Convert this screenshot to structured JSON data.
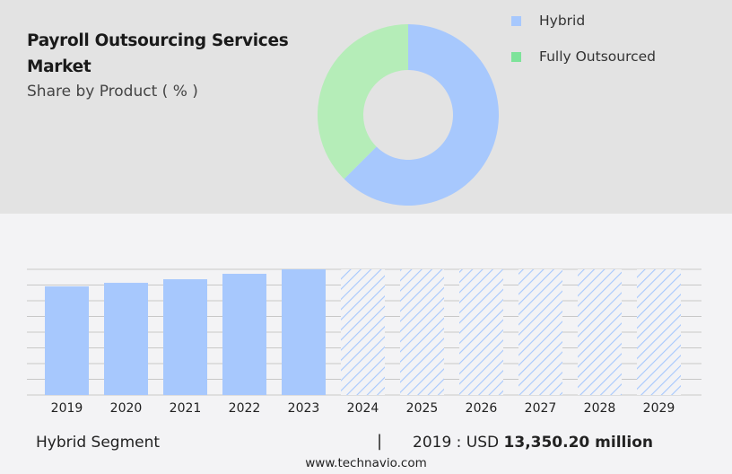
{
  "header": {
    "title": "Payroll Outsourcing Services Market",
    "subtitle": "Share by Product ( % )"
  },
  "chart_data": [
    {
      "type": "pie",
      "variant": "donut",
      "legend_position": "top-right",
      "labels": [
        "Hybrid",
        "Fully Outsourced"
      ],
      "values": [
        62.5,
        37.5
      ],
      "colors": [
        "#a7c8fd",
        "#b5edb8"
      ],
      "legend_colors": [
        "#a7c8fd",
        "#7ee39a"
      ]
    },
    {
      "type": "bar",
      "grid": true,
      "categories": [
        "2019",
        "2020",
        "2021",
        "2022",
        "2023",
        "2024",
        "2025",
        "2026",
        "2027",
        "2028",
        "2029"
      ],
      "values": [
        13350.2,
        13790,
        14230,
        14900,
        15450,
        null,
        null,
        null,
        null,
        null,
        null
      ],
      "forecast": [
        false,
        false,
        false,
        false,
        false,
        true,
        true,
        true,
        true,
        true,
        true
      ],
      "ylim": [
        0,
        15450
      ],
      "color": "#a7c8fd"
    }
  ],
  "footer": {
    "segment": "Hybrid Segment",
    "separator": "|",
    "year_label": "2019 : USD",
    "value": "13,350.20 million"
  },
  "source": "www.technavio.com"
}
